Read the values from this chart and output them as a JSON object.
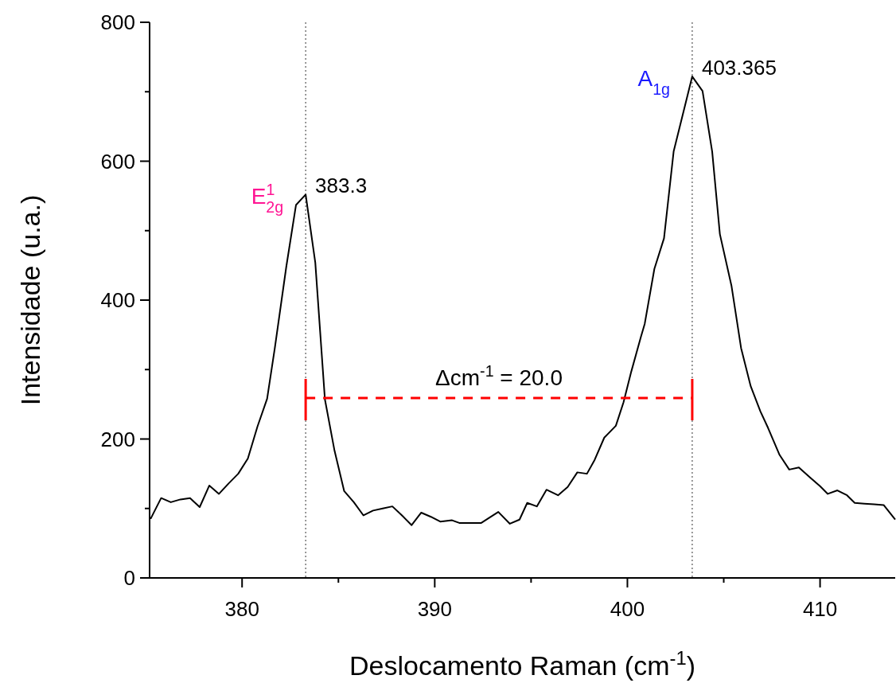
{
  "chart_data": {
    "type": "line",
    "xlabel": "Deslocamento Raman (cm$^{-1}$)",
    "ylabel": "Intensidade (u.a.)",
    "xlim": [
      375.2,
      413.9
    ],
    "ylim": [
      0,
      800
    ],
    "xticks": [
      380,
      {
        "value": 385,
        "label": null
      },
      390,
      {
        "value": 395,
        "label": null
      },
      400,
      {
        "value": 405,
        "label": null
      },
      410
    ],
    "yticks": [
      0,
      {
        "value": 100,
        "label": null
      },
      200,
      {
        "value": 300,
        "label": null
      },
      400,
      {
        "value": 500,
        "label": null
      },
      600,
      {
        "value": 700,
        "label": null
      },
      800
    ],
    "series": [
      {
        "color": "#000000",
        "x": [
          375.25,
          375.8,
          376.3,
          376.8,
          377.3,
          377.8,
          378.3,
          378.8,
          379.3,
          379.8,
          380.3,
          380.8,
          381.3,
          381.7,
          382.3,
          382.8,
          383.3,
          383.8,
          384.3,
          384.8,
          385.3,
          385.8,
          386.3,
          386.8,
          387.3,
          387.8,
          388.3,
          388.8,
          389.3,
          389.8,
          390.3,
          390.9,
          391.3,
          391.8,
          392.4,
          392.8,
          393.3,
          393.9,
          394.4,
          394.8,
          395.3,
          395.8,
          396.4,
          396.9,
          397.4,
          397.9,
          398.3,
          398.8,
          399.4,
          399.8,
          400.2,
          400.7,
          400.9,
          401.4,
          401.9,
          402.4,
          403.365,
          403.9,
          404.4,
          404.8,
          405.4,
          405.9,
          406.4,
          406.9,
          407.3,
          407.9,
          408.4,
          408.9,
          409.5,
          410.0,
          410.4,
          410.9,
          411.4,
          411.8,
          412.3,
          412.8,
          413.3,
          413.9
        ],
        "values": [
          85,
          115,
          109,
          113,
          115,
          102,
          133,
          121,
          136,
          150,
          172,
          218,
          258,
          331,
          449,
          537,
          552,
          454,
          257,
          183,
          125,
          109,
          90,
          97,
          100,
          103,
          90,
          76,
          94,
          88,
          81,
          83,
          79,
          79,
          79,
          86,
          95,
          78,
          84,
          108,
          103,
          127,
          119,
          131,
          152,
          150,
          170,
          202,
          219,
          253,
          297,
          347,
          366,
          445,
          489,
          614,
          722,
          701,
          614,
          495,
          421,
          331,
          276,
          240,
          216,
          177,
          156,
          159,
          144,
          132,
          121,
          126,
          119,
          108,
          107,
          106,
          105,
          84
        ]
      },
      {
        "color": "#ff0000",
        "line_style": "dashed",
        "x": [
          383.3,
          403.365
        ],
        "values": [
          259,
          259
        ]
      }
    ],
    "marker": "none",
    "line_style": "solid",
    "grid": false,
    "ref_lines": [
      {
        "axis": "x",
        "value": 383.3,
        "label": "383.3",
        "color": "#333333",
        "line_style": "dotted"
      },
      {
        "axis": "x",
        "value": 403.365,
        "label": "403.365",
        "color": "#333333",
        "line_style": "dotted"
      }
    ],
    "annotations": [
      {
        "text": "E$^{1}$$_{2g}$",
        "x": 383.3,
        "y": 552
      },
      {
        "text": "A$_{1g}$",
        "x": 403.365,
        "y": 722
      },
      "Δcm$^{-1}$ = 20.0"
    ]
  }
}
